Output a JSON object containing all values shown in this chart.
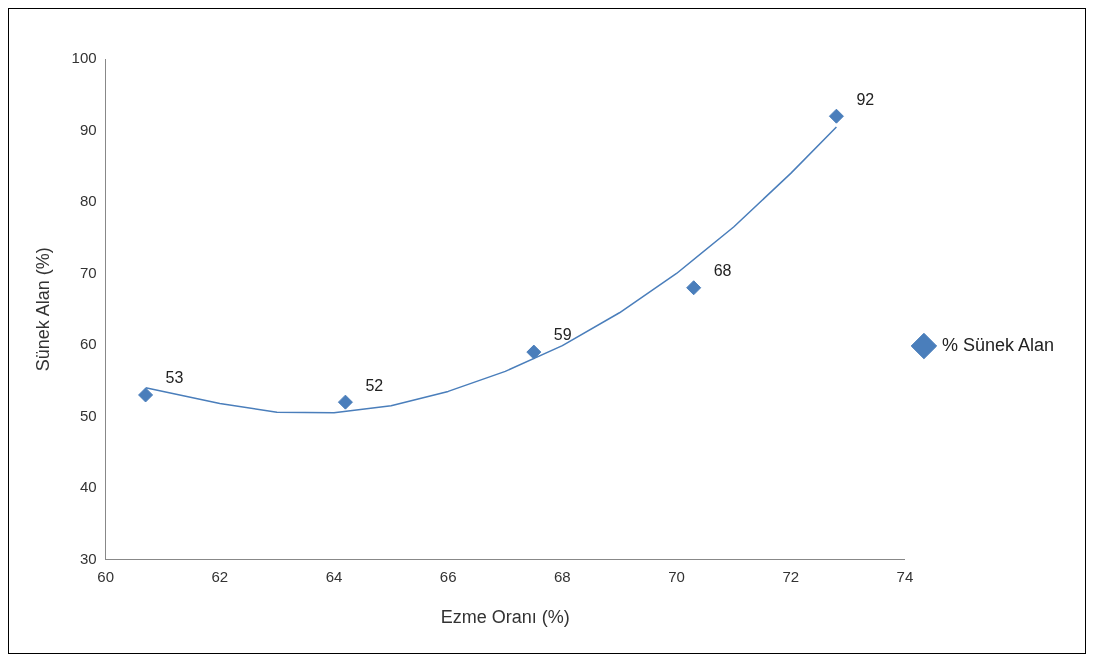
{
  "chart_data": {
    "type": "scatter",
    "xlabel": "Ezme Oranı (%)",
    "ylabel": "Sünek Alan (%)",
    "xlim": [
      60,
      74
    ],
    "xticks": [
      60,
      62,
      64,
      66,
      68,
      70,
      72,
      74
    ],
    "ylim": [
      30,
      100
    ],
    "yticks": [
      30,
      40,
      50,
      60,
      70,
      80,
      90,
      100
    ],
    "grid": false,
    "legend": "right",
    "series": [
      {
        "name": "% Sünek Alan",
        "marker": "diamond",
        "color": "#4a7ebb",
        "x": [
          60.7,
          64.2,
          67.5,
          70.3,
          72.8
        ],
        "values": [
          53,
          52,
          59,
          68,
          92
        ],
        "value_labels": [
          "53",
          "52",
          "59",
          "68",
          "92"
        ]
      },
      {
        "type": "line",
        "marker": "none",
        "color": "#4a7ebb",
        "x": [
          60.7,
          62,
          63,
          64,
          65,
          66,
          67,
          68,
          69,
          70,
          71,
          72,
          72.8
        ],
        "values": [
          54,
          51.8,
          50.6,
          50.5,
          51.5,
          53.5,
          56.3,
          59.9,
          64.5,
          70,
          76.5,
          84,
          90.5
        ]
      }
    ]
  }
}
